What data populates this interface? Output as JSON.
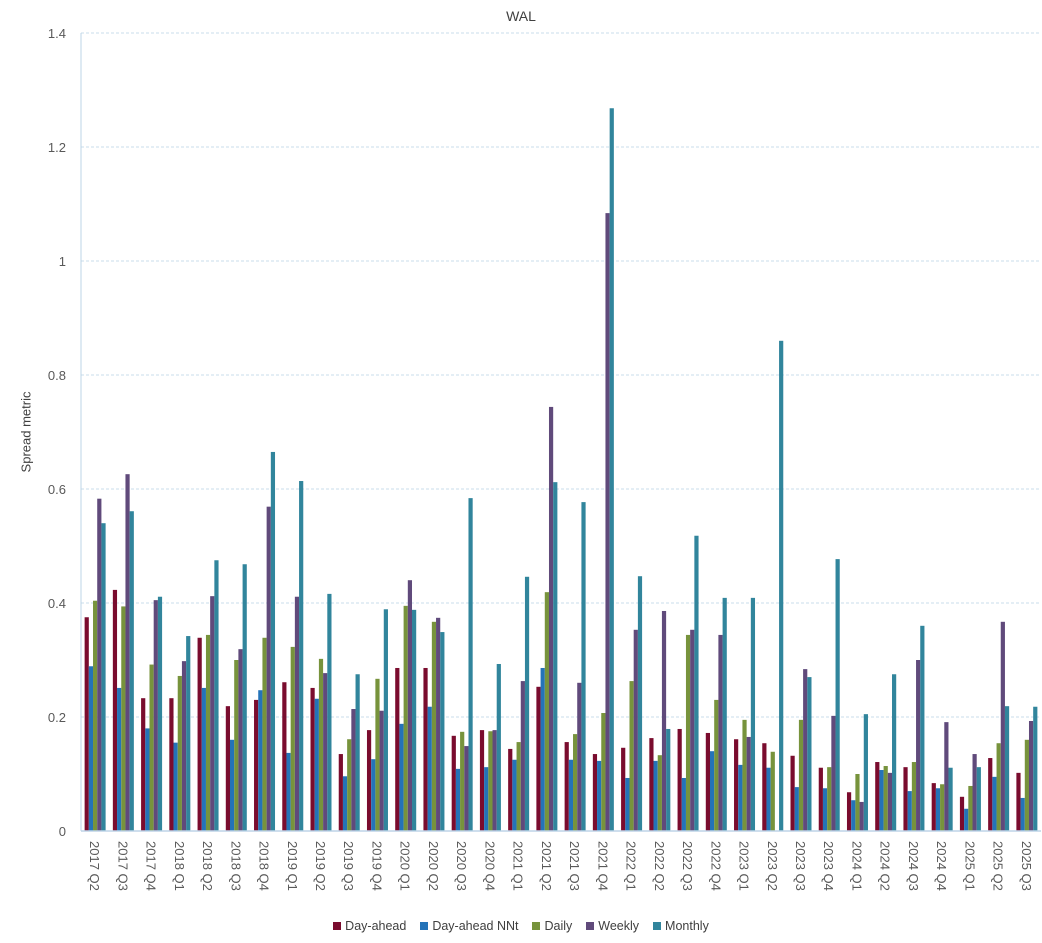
{
  "chart_data": {
    "type": "bar",
    "title": "WAL",
    "xlabel": "",
    "ylabel": "Spread metric",
    "ylim": [
      0,
      1.4
    ],
    "yticks": [
      0,
      0.2,
      0.4,
      0.6,
      0.8,
      1,
      1.2,
      1.4
    ],
    "ytick_labels": [
      "0",
      "0.2",
      "0.4",
      "0.6",
      "0.8",
      "1",
      "1.2",
      "1.4"
    ],
    "grid": true,
    "legend_position": "bottom",
    "categories": [
      "2017 Q2",
      "2017 Q3",
      "2017 Q4",
      "2018 Q1",
      "2018 Q2",
      "2018 Q3",
      "2018 Q4",
      "2019 Q1",
      "2019 Q2",
      "2019 Q3",
      "2019 Q4",
      "2020 Q1",
      "2020 Q2",
      "2020 Q3",
      "2020 Q4",
      "2021 Q1",
      "2021 Q2",
      "2021 Q3",
      "2021 Q4",
      "2022 Q1",
      "2022 Q2",
      "2022 Q3",
      "2022 Q4",
      "2023 Q1",
      "2023 Q2",
      "2023 Q3",
      "2023 Q4",
      "2024 Q1",
      "2024 Q2",
      "2024 Q3",
      "2024 Q4",
      "2025 Q1",
      "2025 Q2",
      "2025 Q3"
    ],
    "series": [
      {
        "name": "Day-ahead",
        "color": "#7A0C2E",
        "values": [
          0.375,
          0.423,
          0.233,
          0.233,
          0.339,
          0.219,
          0.23,
          0.261,
          0.251,
          0.135,
          0.177,
          0.286,
          0.286,
          0.167,
          0.177,
          0.144,
          0.253,
          0.156,
          0.135,
          0.146,
          0.163,
          0.179,
          0.172,
          0.161,
          0.154,
          0.132,
          0.111,
          0.068,
          0.121,
          0.112,
          0.084,
          0.06,
          0.128,
          0.102
        ]
      },
      {
        "name": "Day-ahead NNt",
        "color": "#2473B8",
        "values": [
          0.289,
          0.251,
          0.18,
          0.155,
          0.251,
          0.16,
          0.247,
          0.137,
          0.232,
          0.096,
          0.126,
          0.188,
          0.218,
          0.109,
          0.112,
          0.125,
          0.286,
          0.125,
          0.123,
          0.093,
          0.123,
          0.093,
          0.14,
          0.116,
          0.111,
          0.077,
          0.075,
          0.054,
          0.107,
          0.07,
          0.075,
          0.039,
          0.095,
          0.058
        ]
      },
      {
        "name": "Daily",
        "color": "#77933C",
        "values": [
          0.404,
          0.394,
          0.292,
          0.272,
          0.344,
          0.3,
          0.339,
          0.323,
          0.302,
          0.161,
          0.267,
          0.395,
          0.367,
          0.174,
          0.175,
          0.156,
          0.419,
          0.17,
          0.207,
          0.263,
          0.133,
          0.344,
          0.23,
          0.195,
          0.139,
          0.195,
          0.112,
          0.1,
          0.114,
          0.121,
          0.082,
          0.079,
          0.154,
          0.16
        ]
      },
      {
        "name": "Weekly",
        "color": "#604A7B",
        "values": [
          0.583,
          0.626,
          0.405,
          0.298,
          0.412,
          0.319,
          0.569,
          0.411,
          0.277,
          0.214,
          0.211,
          0.44,
          0.374,
          0.149,
          0.177,
          0.263,
          0.744,
          0.26,
          1.084,
          0.353,
          0.386,
          0.353,
          0.344,
          0.165,
          null,
          0.284,
          0.202,
          0.051,
          0.102,
          0.3,
          0.191,
          0.135,
          0.367,
          0.193
        ]
      },
      {
        "name": "Monthly",
        "color": "#31859C",
        "values": [
          0.54,
          0.561,
          0.411,
          0.342,
          0.475,
          0.468,
          0.665,
          0.614,
          0.416,
          0.275,
          0.389,
          0.388,
          0.349,
          0.584,
          0.293,
          0.446,
          0.612,
          0.577,
          1.268,
          0.447,
          0.179,
          0.518,
          0.409,
          0.409,
          0.86,
          0.27,
          0.477,
          0.205,
          0.275,
          0.36,
          0.111,
          0.112,
          0.219,
          0.218
        ]
      }
    ]
  },
  "style": {
    "gridline_color": "#C9DCEB",
    "axis_color": "#BDD4E7",
    "text_color": "#595959"
  }
}
